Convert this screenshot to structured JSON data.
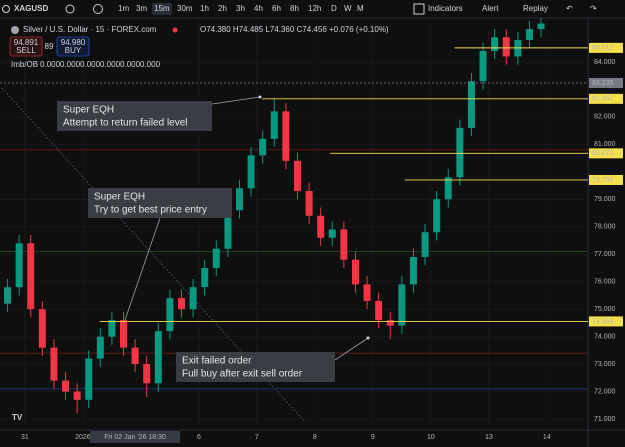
{
  "toolbar": {
    "symbol": "XAGUSD",
    "intervals": [
      "1m",
      "3m",
      "15m",
      "30m",
      "1h",
      "2h",
      "3h",
      "4h",
      "6h",
      "8h",
      "12h",
      "D",
      "W",
      "M"
    ],
    "active_interval": 2,
    "indicators": "Indicators",
    "alert": "Alert",
    "replay": "Replay"
  },
  "legend": {
    "title": "Silver / U.S. Dollar · 15 · FOREX.com",
    "ohlc": "O74.380 H74.485 L74.360 C74.456 +0.076 (+0.10%)",
    "sell_price": "94.891",
    "sell": "SELL",
    "spread": "89",
    "buy_price": "94.980",
    "buy": "BUY",
    "indicator": {
      "name": "Imb/OB",
      "values": [
        "0.000",
        "0.000",
        "0.000",
        "0.000",
        "0.000",
        "0.000"
      ],
      "colors": [
        "#e6c619",
        "#e6c619",
        "#26a69a",
        "#26a69a",
        "#ef5350",
        "#ef5350"
      ]
    }
  },
  "chart_data": {
    "type": "candlestick",
    "x": [
      -0.3,
      -0.1,
      0.1,
      0.3,
      0.5,
      0.7,
      0.9,
      1.1,
      1.3,
      1.5,
      1.7,
      1.9,
      2.1,
      2.3,
      2.5,
      2.7,
      2.9,
      3.1,
      3.3,
      3.5,
      3.7,
      3.9,
      4.1,
      4.3,
      4.5,
      4.7,
      4.9,
      5.1,
      5.3,
      5.5,
      5.7,
      5.9,
      6.1,
      6.3,
      6.5,
      6.7,
      6.9,
      7.1,
      7.3,
      7.5,
      7.7,
      7.9,
      8.1,
      8.3,
      8.5,
      8.7,
      8.9
    ],
    "open": [
      75.2,
      75.8,
      77.4,
      75.0,
      73.6,
      72.4,
      72.0,
      71.7,
      73.2,
      74.0,
      74.6,
      73.6,
      73.0,
      72.3,
      74.2,
      75.4,
      75.0,
      75.8,
      76.5,
      77.2,
      78.6,
      79.4,
      80.6,
      81.2,
      82.2,
      80.4,
      79.3,
      78.4,
      77.6,
      77.9,
      76.8,
      75.9,
      75.3,
      74.6,
      74.4,
      75.9,
      76.9,
      77.8,
      79.0,
      79.8,
      81.6,
      83.3,
      84.4,
      84.9,
      84.2,
      84.8,
      85.2
    ],
    "high": [
      76.1,
      77.7,
      77.7,
      75.3,
      73.9,
      72.7,
      72.3,
      73.5,
      74.3,
      74.9,
      74.9,
      73.9,
      73.3,
      74.5,
      75.7,
      75.7,
      76.1,
      76.8,
      77.5,
      78.9,
      79.7,
      80.9,
      81.5,
      82.65,
      82.5,
      80.7,
      79.6,
      78.7,
      78.2,
      78.2,
      77.1,
      76.2,
      75.6,
      74.9,
      76.2,
      77.2,
      78.1,
      79.3,
      80.1,
      81.9,
      83.6,
      84.7,
      85.2,
      85.2,
      85.1,
      85.5,
      85.7
    ],
    "low": [
      74.9,
      75.5,
      74.7,
      73.3,
      72.1,
      71.7,
      71.2,
      71.4,
      72.9,
      73.7,
      73.3,
      72.7,
      71.8,
      72.0,
      73.9,
      74.7,
      74.7,
      75.5,
      76.2,
      76.9,
      78.3,
      79.1,
      80.3,
      80.9,
      80.1,
      79.0,
      78.1,
      77.3,
      77.3,
      76.5,
      75.6,
      75.0,
      74.3,
      73.9,
      74.1,
      75.6,
      76.6,
      77.5,
      78.7,
      79.5,
      81.3,
      83.0,
      84.1,
      83.9,
      83.9,
      84.5,
      84.9
    ],
    "close": [
      75.8,
      77.4,
      75.0,
      73.6,
      72.4,
      72.0,
      71.7,
      73.2,
      74.0,
      74.6,
      73.6,
      73.0,
      72.3,
      74.2,
      75.4,
      75.0,
      75.8,
      76.5,
      77.2,
      78.6,
      79.4,
      80.6,
      81.2,
      82.2,
      80.4,
      79.3,
      78.4,
      77.6,
      77.9,
      76.8,
      75.9,
      75.3,
      74.6,
      74.4,
      75.9,
      76.9,
      77.8,
      79.0,
      79.8,
      81.6,
      83.3,
      84.4,
      84.9,
      84.2,
      84.8,
      85.2,
      85.4
    ],
    "up_color": "#089981",
    "down_color": "#f23645",
    "xlim": [
      -0.43,
      9.71
    ],
    "ylim": [
      70.6,
      85.6
    ],
    "yticks": [
      {
        "value": 71,
        "label": "71.000"
      },
      {
        "value": 72,
        "label": "72.000"
      },
      {
        "value": 73,
        "label": "73.000"
      },
      {
        "value": 74,
        "label": "74.000"
      },
      {
        "value": 75,
        "label": "75.000"
      },
      {
        "value": 76,
        "label": "76.000"
      },
      {
        "value": 77,
        "label": "77.000"
      },
      {
        "value": 78,
        "label": "78.000"
      },
      {
        "value": 79,
        "label": "79.000"
      },
      {
        "value": 81,
        "label": "81.000"
      },
      {
        "value": 82,
        "label": "82.000"
      },
      {
        "value": 84,
        "label": "84.000"
      }
    ],
    "xticks": [
      {
        "value": 0,
        "label": "31"
      },
      {
        "value": 1,
        "label": "2026"
      },
      {
        "value": 3,
        "label": "6"
      },
      {
        "value": 4,
        "label": "7"
      },
      {
        "value": 5,
        "label": "8"
      },
      {
        "value": 6,
        "label": "9"
      },
      {
        "value": 7,
        "label": "10"
      },
      {
        "value": 8,
        "label": "13"
      },
      {
        "value": 9,
        "label": "14"
      }
    ],
    "crosshair": {
      "x": 1.9,
      "label": "Fri 02 Jan '26 18:30"
    },
    "grid": true,
    "levels": [
      {
        "value": 84.512,
        "x0": 7.41,
        "color": "#f5e04c"
      },
      {
        "value": 83.235,
        "x0": -0.43,
        "color": "#787b86"
      },
      {
        "value": 82.657,
        "x0": 4.09,
        "color": "#f5e04c"
      },
      {
        "value": 80.672,
        "x0": 5.26,
        "color": "#f5e04c"
      },
      {
        "value": 79.703,
        "x0": 6.55,
        "color": "#f5e04c"
      },
      {
        "value": 74.553,
        "x0": 1.29,
        "color": "#f5e04c"
      }
    ],
    "zones": [
      {
        "value": 80.8,
        "color": "#7a1f1f"
      },
      {
        "value": 77.1,
        "color": "#1f5a2a"
      },
      {
        "value": 73.4,
        "color": "#7a1f1f"
      },
      {
        "value": 72.1,
        "color": "#1f3a7a"
      }
    ]
  },
  "annotations": [
    {
      "lines": [
        "Super EQH",
        "Attempt to return failed level"
      ]
    },
    {
      "lines": [
        "Super EQH",
        "Try to get best price entry"
      ]
    },
    {
      "lines": [
        "Exit failed order",
        "Full buy after exit sell order"
      ]
    }
  ]
}
